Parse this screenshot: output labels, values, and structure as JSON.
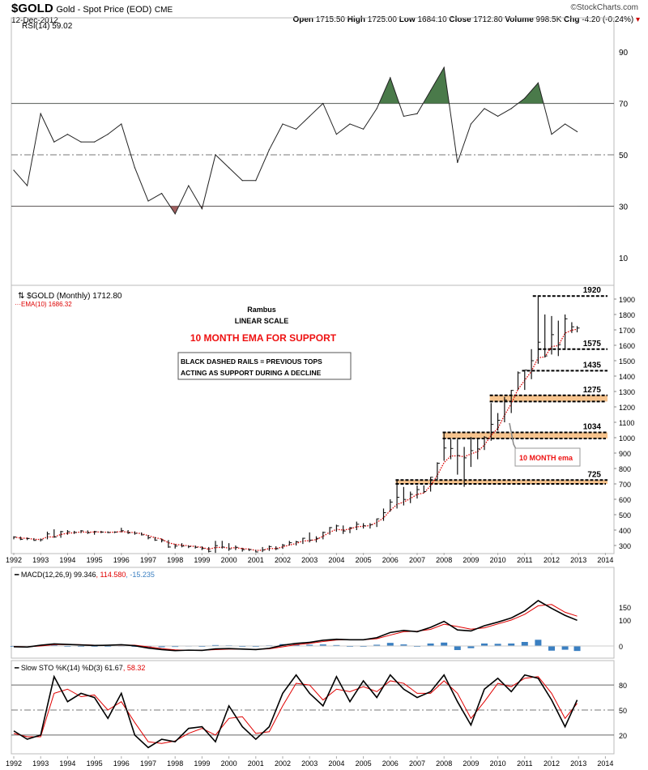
{
  "header": {
    "symbol": "$GOLD",
    "name": "Gold - Spot Price (EOD)",
    "exchange": "CME",
    "date": "12-Dec-2012",
    "credit": "©StockCharts.com",
    "open_label": "Open",
    "open": "1715.50",
    "high_label": "High",
    "high": "1725.00",
    "low_label": "Low",
    "low": "1684.10",
    "close_label": "Close",
    "close": "1712.80",
    "volume_label": "Volume",
    "volume": "998.5K",
    "chg_label": "Chg",
    "chg": "-4.20 (-0.24%)",
    "chg_color": "#cc0000"
  },
  "chart_data": [
    {
      "type": "line",
      "panel": "rsi",
      "legend": "RSI(14) 59.02",
      "ylim": [
        0,
        100
      ],
      "yticks": [
        10,
        30,
        50,
        70,
        90
      ],
      "levels": [
        30,
        50,
        70
      ],
      "fill_above_color": "#4a7a4a",
      "fill_below_color": "#a06060",
      "x": [
        1992.0,
        1992.5,
        1993.0,
        1993.5,
        1994.0,
        1994.5,
        1995.0,
        1995.5,
        1996.0,
        1996.5,
        1997.0,
        1997.5,
        1998.0,
        1998.5,
        1999.0,
        1999.5,
        2000.0,
        2000.5,
        2001.0,
        2001.5,
        2002.0,
        2002.5,
        2003.0,
        2003.5,
        2004.0,
        2004.5,
        2005.0,
        2005.5,
        2006.0,
        2006.5,
        2007.0,
        2007.5,
        2008.0,
        2008.5,
        2009.0,
        2009.5,
        2010.0,
        2010.5,
        2011.0,
        2011.5,
        2012.0,
        2012.5,
        2012.95
      ],
      "values": [
        44,
        38,
        66,
        55,
        58,
        55,
        55,
        58,
        62,
        45,
        32,
        35,
        27,
        38,
        29,
        50,
        45,
        40,
        40,
        52,
        62,
        60,
        65,
        70,
        58,
        62,
        60,
        68,
        80,
        65,
        66,
        75,
        84,
        47,
        62,
        68,
        65,
        68,
        72,
        78,
        58,
        62,
        59
      ]
    },
    {
      "type": "ohlc",
      "panel": "price",
      "legend": "$GOLD (Monthly) 1712.80",
      "ema_legend": "EMA(10) 1686.32",
      "ema_color": "#dd0000",
      "ylim": [
        250,
        1950
      ],
      "yticks": [
        300,
        400,
        500,
        600,
        700,
        800,
        900,
        1000,
        1100,
        1200,
        1300,
        1400,
        1500,
        1600,
        1700,
        1800,
        1900
      ],
      "x": [
        1992.0,
        1992.25,
        1992.5,
        1992.75,
        1993.0,
        1993.25,
        1993.5,
        1993.75,
        1994.0,
        1994.25,
        1994.5,
        1994.75,
        1995.0,
        1995.25,
        1995.5,
        1995.75,
        1996.0,
        1996.25,
        1996.5,
        1996.75,
        1997.0,
        1997.25,
        1997.5,
        1997.75,
        1998.0,
        1998.25,
        1998.5,
        1998.75,
        1999.0,
        1999.25,
        1999.5,
        1999.75,
        2000.0,
        2000.25,
        2000.5,
        2000.75,
        2001.0,
        2001.25,
        2001.5,
        2001.75,
        2002.0,
        2002.25,
        2002.5,
        2002.75,
        2003.0,
        2003.25,
        2003.5,
        2003.75,
        2004.0,
        2004.25,
        2004.5,
        2004.75,
        2005.0,
        2005.25,
        2005.5,
        2005.75,
        2006.0,
        2006.25,
        2006.5,
        2006.75,
        2007.0,
        2007.25,
        2007.5,
        2007.75,
        2008.0,
        2008.25,
        2008.5,
        2008.75,
        2009.0,
        2009.25,
        2009.5,
        2009.75,
        2010.0,
        2010.25,
        2010.5,
        2010.75,
        2011.0,
        2011.25,
        2011.5,
        2011.75,
        2012.0,
        2012.25,
        2012.5,
        2012.75,
        2012.95
      ],
      "close": [
        355,
        340,
        345,
        333,
        337,
        375,
        355,
        390,
        390,
        385,
        395,
        383,
        390,
        387,
        384,
        387,
        396,
        382,
        379,
        369,
        350,
        335,
        332,
        290,
        296,
        296,
        293,
        288,
        280,
        262,
        299,
        290,
        278,
        288,
        273,
        273,
        258,
        271,
        293,
        279,
        302,
        318,
        324,
        347,
        335,
        346,
        385,
        416,
        427,
        394,
        415,
        438,
        428,
        435,
        473,
        513,
        582,
        613,
        599,
        632,
        663,
        650,
        743,
        834,
        933,
        930,
        884,
        869,
        916,
        927,
        1001,
        1087,
        1113,
        1244,
        1307,
        1421,
        1439,
        1500,
        1620,
        1531,
        1669,
        1604,
        1772,
        1720,
        1712
      ],
      "high": [
        360,
        358,
        352,
        348,
        345,
        390,
        405,
        395,
        400,
        395,
        400,
        398,
        395,
        395,
        392,
        392,
        415,
        400,
        392,
        385,
        368,
        355,
        345,
        335,
        310,
        315,
        300,
        300,
        295,
        290,
        330,
        330,
        315,
        300,
        285,
        280,
        272,
        290,
        300,
        295,
        310,
        330,
        330,
        350,
        385,
        360,
        390,
        420,
        435,
        430,
        420,
        455,
        445,
        445,
        475,
        540,
        600,
        730,
        680,
        650,
        690,
        690,
        745,
        840,
        1030,
        990,
        990,
        940,
        1005,
        990,
        1010,
        1225,
        1160,
        1265,
        1310,
        1430,
        1440,
        1575,
        1920,
        1800,
        1790,
        1760,
        1800,
        1750,
        1725
      ],
      "low": [
        340,
        335,
        335,
        330,
        326,
        340,
        350,
        350,
        370,
        375,
        380,
        375,
        370,
        380,
        380,
        380,
        385,
        375,
        370,
        365,
        340,
        330,
        320,
        285,
        280,
        288,
        283,
        280,
        270,
        255,
        252,
        280,
        265,
        270,
        260,
        264,
        255,
        257,
        265,
        270,
        278,
        300,
        300,
        310,
        320,
        320,
        340,
        370,
        390,
        375,
        380,
        400,
        410,
        410,
        420,
        460,
        520,
        540,
        560,
        575,
        605,
        640,
        650,
        720,
        850,
        860,
        760,
        681,
        810,
        860,
        920,
        980,
        1045,
        1100,
        1160,
        1310,
        1310,
        1380,
        1480,
        1520,
        1540,
        1530,
        1580,
        1680,
        1684
      ],
      "rails": [
        {
          "label": "1920",
          "value": 1920,
          "from": 2011.3,
          "band": false
        },
        {
          "label": "1575",
          "value": 1575,
          "from": 2011.5,
          "band": false
        },
        {
          "label": "1435",
          "value": 1435,
          "from": 2010.9,
          "band": false
        },
        {
          "label": "1275",
          "value": 1275,
          "from": 2009.7,
          "band": true,
          "band_low": 1235
        },
        {
          "label": "1034",
          "value": 1034,
          "from": 2007.95,
          "band": true,
          "band_low": 995
        },
        {
          "label": "725",
          "value": 725,
          "from": 2006.2,
          "band": true,
          "band_low": 700
        }
      ],
      "band_color": "#f7c48e",
      "annotations": {
        "author": "Rambus",
        "scale": "LINEAR SCALE",
        "title": "10 MONTH EMA FOR SUPPORT",
        "note_line1": "BLACK DASHED RAILS = PREVIOUS TOPS",
        "note_line2": "ACTING AS SUPPORT DURING A DECLINE",
        "callout": "10 MONTH ema"
      }
    },
    {
      "type": "line",
      "panel": "macd",
      "legend": "MACD(12,26,9) 99.346",
      "legend_signal": ", 114.580",
      "legend_hist": ", -15.235",
      "signal_color": "#e00000",
      "hist_color": "#3a7fc1",
      "yticks": [
        0,
        100,
        150
      ],
      "x": [
        1992.0,
        1992.5,
        1993.0,
        1993.5,
        1994.0,
        1994.5,
        1995.0,
        1995.5,
        1996.0,
        1996.5,
        1997.0,
        1997.5,
        1998.0,
        1998.5,
        1999.0,
        1999.5,
        2000.0,
        2000.5,
        2001.0,
        2001.5,
        2002.0,
        2002.5,
        2003.0,
        2003.5,
        2004.0,
        2004.5,
        2005.0,
        2005.5,
        2006.0,
        2006.5,
        2007.0,
        2007.5,
        2008.0,
        2008.5,
        2009.0,
        2009.5,
        2010.0,
        2010.5,
        2011.0,
        2011.5,
        2012.0,
        2012.5,
        2012.95
      ],
      "macd": [
        -3,
        -4,
        3,
        8,
        6,
        4,
        2,
        3,
        5,
        1,
        -8,
        -14,
        -18,
        -16,
        -17,
        -11,
        -10,
        -12,
        -14,
        -9,
        3,
        10,
        14,
        22,
        26,
        24,
        24,
        32,
        52,
        60,
        55,
        72,
        95,
        62,
        58,
        78,
        92,
        108,
        135,
        175,
        145,
        118,
        99
      ],
      "signal": [
        -2,
        -3,
        0,
        5,
        6,
        5,
        3,
        3,
        4,
        3,
        -3,
        -10,
        -15,
        -17,
        -16,
        -14,
        -12,
        -12,
        -13,
        -11,
        -3,
        5,
        10,
        17,
        23,
        25,
        24,
        28,
        42,
        55,
        57,
        64,
        84,
        75,
        65,
        70,
        85,
        100,
        122,
        155,
        160,
        130,
        115
      ]
    },
    {
      "type": "line",
      "panel": "stochastic",
      "legend": "Slow STO %K(14) %D(3) 61.67",
      "legend_d": ", 58.32",
      "d_color": "#e00000",
      "levels": [
        20,
        50,
        80
      ],
      "yticks": [
        20,
        50,
        80
      ],
      "ylim": [
        0,
        100
      ],
      "x": [
        1992.0,
        1992.5,
        1993.0,
        1993.5,
        1994.0,
        1994.5,
        1995.0,
        1995.5,
        1996.0,
        1996.5,
        1997.0,
        1997.5,
        1998.0,
        1998.5,
        1999.0,
        1999.5,
        2000.0,
        2000.5,
        2001.0,
        2001.5,
        2002.0,
        2002.5,
        2003.0,
        2003.5,
        2004.0,
        2004.5,
        2005.0,
        2005.5,
        2006.0,
        2006.5,
        2007.0,
        2007.5,
        2008.0,
        2008.5,
        2009.0,
        2009.5,
        2010.0,
        2010.5,
        2011.0,
        2011.5,
        2012.0,
        2012.5,
        2012.95
      ],
      "k": [
        25,
        15,
        20,
        90,
        60,
        70,
        65,
        40,
        70,
        20,
        5,
        15,
        12,
        28,
        30,
        12,
        55,
        30,
        15,
        30,
        70,
        92,
        70,
        55,
        90,
        60,
        85,
        65,
        92,
        75,
        65,
        72,
        92,
        60,
        32,
        75,
        88,
        72,
        92,
        88,
        62,
        30,
        62
      ],
      "d": [
        22,
        18,
        18,
        70,
        75,
        66,
        68,
        50,
        60,
        35,
        12,
        10,
        13,
        22,
        28,
        20,
        40,
        42,
        22,
        24,
        55,
        82,
        80,
        62,
        75,
        72,
        78,
        72,
        85,
        82,
        70,
        70,
        85,
        70,
        40,
        60,
        82,
        78,
        88,
        90,
        70,
        40,
        58
      ]
    }
  ],
  "x_axis": {
    "years": [
      "1992",
      "1993",
      "1994",
      "1995",
      "1996",
      "1997",
      "1998",
      "1999",
      "2000",
      "2001",
      "2002",
      "2003",
      "2004",
      "2005",
      "2006",
      "2007",
      "2008",
      "2009",
      "2010",
      "2011",
      "2012",
      "2013",
      "2014"
    ]
  }
}
